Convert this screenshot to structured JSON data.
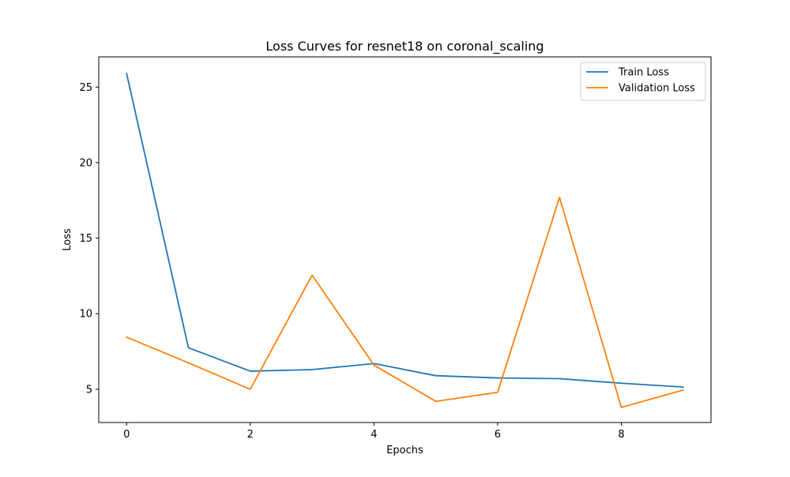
{
  "chart_data": {
    "type": "line",
    "title": "Loss Curves for resnet18 on coronal_scaling",
    "xlabel": "Epochs",
    "ylabel": "Loss",
    "x": [
      0,
      1,
      2,
      3,
      4,
      5,
      6,
      7,
      8,
      9
    ],
    "xlim": [
      -0.45,
      9.45
    ],
    "ylim": [
      2.8,
      27.0
    ],
    "xticks": [
      0,
      2,
      4,
      6,
      8
    ],
    "yticks": [
      5,
      10,
      15,
      20,
      25
    ],
    "grid": false,
    "legend_position": "top-right",
    "series": [
      {
        "name": "Train Loss",
        "color": "#1f77b4",
        "values": [
          25.9,
          7.75,
          6.2,
          6.3,
          6.7,
          5.9,
          5.75,
          5.7,
          5.4,
          5.15
        ]
      },
      {
        "name": "Validation Loss",
        "color": "#ff7f0e",
        "values": [
          8.45,
          6.75,
          5.0,
          12.55,
          6.6,
          4.2,
          4.8,
          17.7,
          3.8,
          4.95
        ]
      }
    ]
  }
}
